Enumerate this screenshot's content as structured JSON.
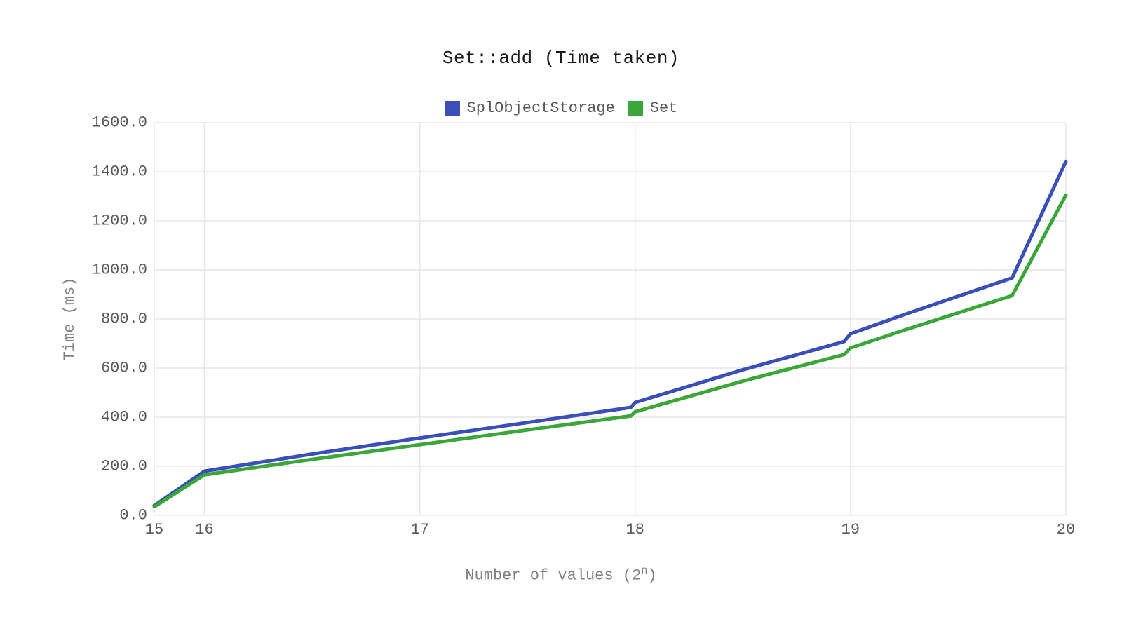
{
  "chart": {
    "type": "line",
    "title": "Set::add (Time taken)",
    "xlabel_prefix": "Number of values (2",
    "xlabel_suffix": ")",
    "xlabel_exp": "n",
    "ylabel": "Time (ms)",
    "background_color": "#ffffff",
    "grid_color": "#e5e5e5",
    "axis_line_color": "#d0d0d0",
    "title_color": "#1a1a1a",
    "label_color": "#808080",
    "tick_color": "#5a5a5a",
    "title_fontsize": 26,
    "label_fontsize": 22,
    "tick_fontsize": 22,
    "line_width": 5,
    "xlim": [
      15,
      20
    ],
    "ylim": [
      0,
      1600
    ],
    "ytick_step": 200,
    "y_ticks": [
      "0.0",
      "200.0",
      "400.0",
      "600.0",
      "800.0",
      "1000.0",
      "1200.0",
      "1400.0",
      "1600.0"
    ],
    "x_ticks": [
      15,
      16,
      17,
      18,
      19,
      20
    ],
    "legend": [
      {
        "label": "SplObjectStorage",
        "color": "#3a4fb8"
      },
      {
        "label": "Set",
        "color": "#3ba639"
      }
    ],
    "series": {
      "SplObjectStorage": {
        "color": "#3a4fb8",
        "points": [
          [
            15.0,
            40
          ],
          [
            15.5,
            110
          ],
          [
            16.0,
            180
          ],
          [
            16.5,
            250
          ],
          [
            17.0,
            315
          ],
          [
            17.5,
            378
          ],
          [
            17.98,
            440
          ],
          [
            18.0,
            460
          ],
          [
            18.5,
            593
          ],
          [
            18.97,
            708
          ],
          [
            19.0,
            740
          ],
          [
            19.25,
            818
          ],
          [
            19.5,
            893
          ],
          [
            19.75,
            967
          ],
          [
            20.0,
            1442
          ]
        ]
      },
      "Set": {
        "color": "#3ba639",
        "points": [
          [
            15.0,
            35
          ],
          [
            15.5,
            100
          ],
          [
            16.0,
            165
          ],
          [
            16.5,
            228
          ],
          [
            17.0,
            288
          ],
          [
            17.5,
            348
          ],
          [
            17.98,
            405
          ],
          [
            18.0,
            422
          ],
          [
            18.5,
            547
          ],
          [
            18.97,
            655
          ],
          [
            19.0,
            682
          ],
          [
            19.25,
            755
          ],
          [
            19.5,
            825
          ],
          [
            19.75,
            895
          ],
          [
            20.0,
            1305
          ]
        ]
      }
    }
  }
}
